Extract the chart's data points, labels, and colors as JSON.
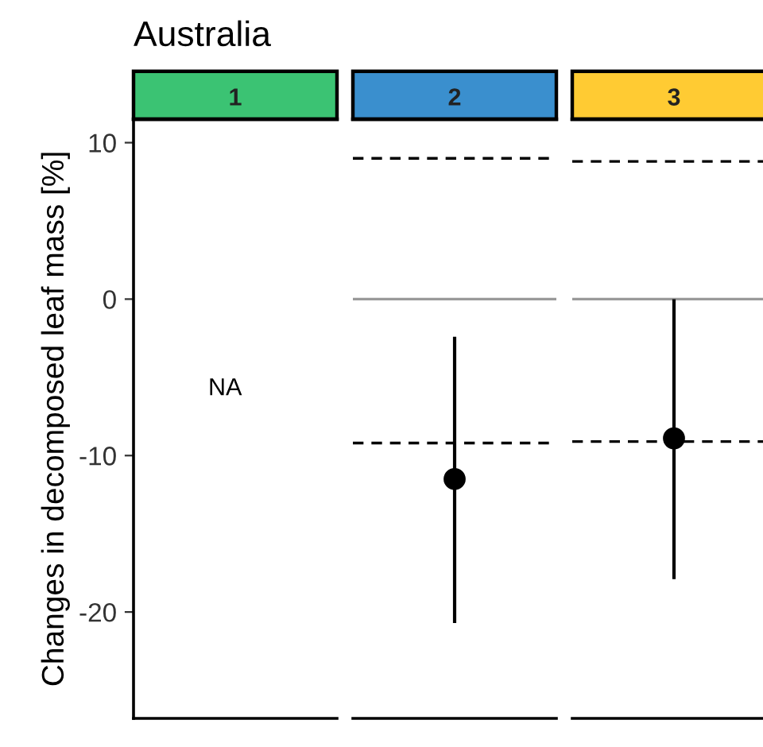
{
  "chart_data": [
    {
      "type": "scatter",
      "title": "Australia",
      "ylabel": "Changes in decomposed leaf mass [%]",
      "categories": [
        "1"
      ],
      "values": [
        null
      ],
      "color": "#000000",
      "marker": "circle",
      "ylim": [
        -26.8,
        11.5
      ],
      "yticks": [
        -20,
        -10,
        0,
        10
      ],
      "grid": false,
      "legend": false,
      "annotations": [
        "NA"
      ]
    },
    {
      "type": "scatter",
      "categories": [
        "2"
      ],
      "values": [
        -11.5
      ],
      "errors": [
        [
          -20.7,
          -2.4
        ]
      ],
      "color": "#000000",
      "marker": "circle",
      "ylim": [
        -26.8,
        11.5
      ],
      "yticks": [
        -20,
        -10,
        0,
        10
      ],
      "tick_labels": "x",
      "grid": false,
      "legend": false,
      "ref_lines": [
        {
          "axis": "y",
          "value": 0,
          "color": "#999999",
          "line_style": "solid"
        },
        {
          "axis": "y",
          "value": 9.0,
          "color": "#000000",
          "line_style": "dashed"
        },
        {
          "axis": "y",
          "value": -9.2,
          "color": "#000000",
          "line_style": "dashed"
        }
      ]
    },
    {
      "type": "scatter",
      "categories": [
        "3"
      ],
      "values": [
        -8.9
      ],
      "errors": [
        [
          -17.9,
          0
        ]
      ],
      "color": "#000000",
      "marker": "circle",
      "ylim": [
        -26.8,
        11.5
      ],
      "yticks": [
        -20,
        -10,
        0,
        10
      ],
      "tick_labels": "x",
      "grid": false,
      "legend": false,
      "ref_lines": [
        {
          "axis": "y",
          "value": 0,
          "color": "#999999",
          "line_style": "solid"
        },
        {
          "axis": "y",
          "value": 8.8,
          "color": "#000000",
          "line_style": "dashed"
        },
        {
          "axis": "y",
          "value": -9.1,
          "color": "#000000",
          "line_style": "dashed"
        }
      ]
    }
  ]
}
